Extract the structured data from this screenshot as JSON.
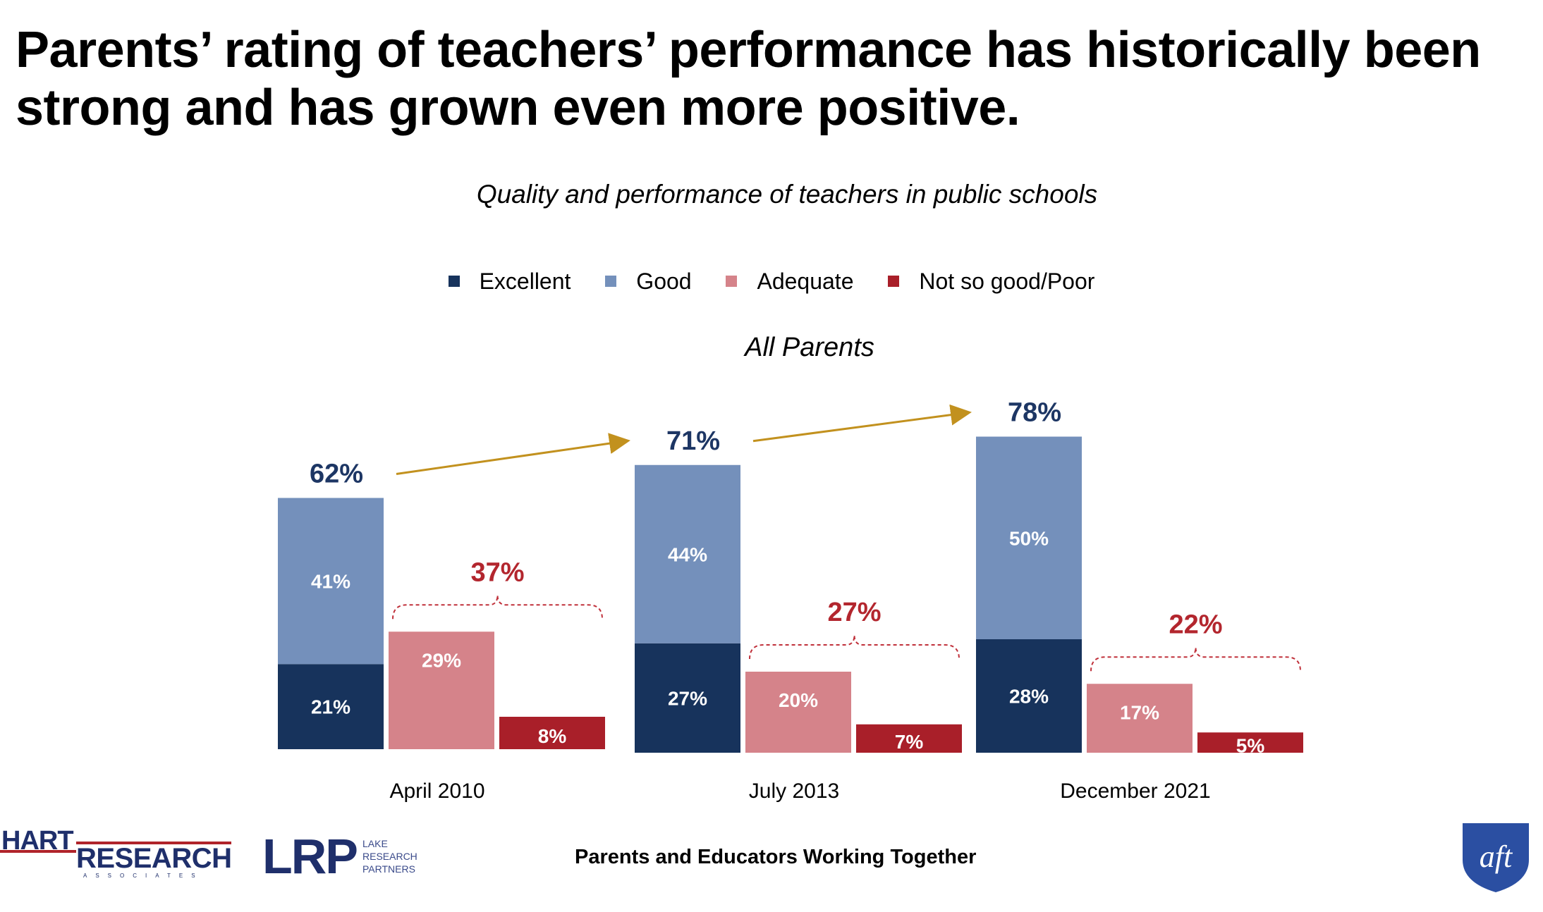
{
  "headline": "Parents’ rating of teachers’ performance has historically been strong and has grown even more positive.",
  "footer": "Parents and Educators Working Together",
  "logos": {
    "hart_top": "HART",
    "hart_main": "RESEARCH",
    "hart_sub": "ASSOCIATES",
    "lrp_mark": "LRP",
    "lrp_sub": "LAKE RESEARCH PARTNERS",
    "aft": "aft"
  },
  "colors": {
    "excellent": "#17335c",
    "good": "#7490bb",
    "adequate": "#d5838a",
    "poor": "#a91f29",
    "total_positive": "#1d3664",
    "total_negative": "#b3262e",
    "arrow": "#c2911e"
  },
  "chart_data": {
    "type": "bar",
    "title": "Quality and performance of teachers in public schools",
    "group_title": "All Parents",
    "legend": [
      "Excellent",
      "Good",
      "Adequate",
      "Not so good/Poor"
    ],
    "categories": [
      "April 2010",
      "July 2013",
      "December 2021"
    ],
    "series": [
      {
        "name": "Excellent",
        "values": [
          21,
          27,
          28
        ],
        "labels": [
          "21%",
          "27%",
          "28%"
        ]
      },
      {
        "name": "Good",
        "values": [
          41,
          44,
          50
        ],
        "labels": [
          "41%",
          "44%",
          "50%"
        ]
      },
      {
        "name": "Adequate",
        "values": [
          29,
          20,
          17
        ],
        "labels": [
          "29%",
          "20%",
          "17%"
        ]
      },
      {
        "name": "Not so good/Poor",
        "values": [
          8,
          7,
          5
        ],
        "labels": [
          "8%",
          "7%",
          "5%"
        ]
      }
    ],
    "stacked": "Excellent + Good",
    "positive_totals": [
      62,
      71,
      78
    ],
    "positive_total_labels": [
      "62%",
      "71%",
      "78%"
    ],
    "negative_totals": [
      37,
      27,
      22
    ],
    "negative_total_labels": [
      "37%",
      "27%",
      "22%"
    ]
  }
}
